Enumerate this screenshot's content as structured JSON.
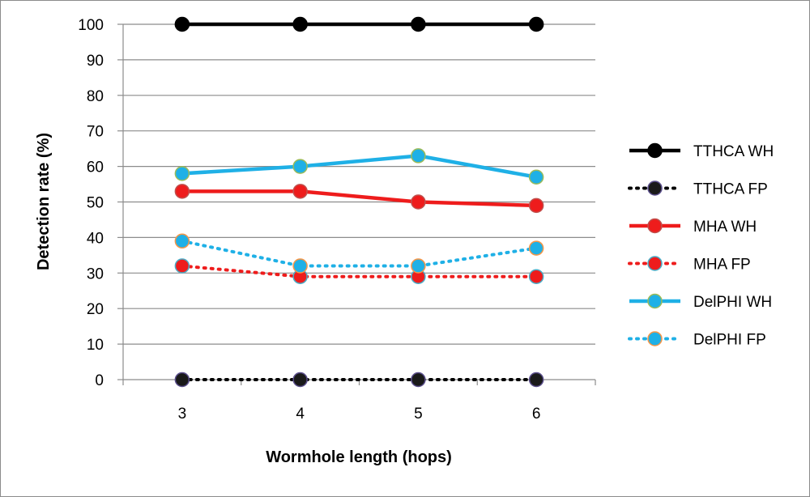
{
  "chart_data": {
    "type": "line",
    "title": "",
    "xlabel": "Wormhole length (hops)",
    "ylabel": "Detection rate (%)",
    "categories": [
      "3",
      "4",
      "5",
      "6"
    ],
    "ylim": [
      0,
      100
    ],
    "yticks": [
      0,
      10,
      20,
      30,
      40,
      50,
      60,
      70,
      80,
      90,
      100
    ],
    "grid": true,
    "legend_position": "right",
    "series": [
      {
        "name": "TTHCA WH",
        "values": [
          100,
          100,
          100,
          100
        ],
        "line_color": "#000000",
        "marker_fill": "#000000",
        "marker_edge": "#000000",
        "dashed": false
      },
      {
        "name": "TTHCA FP",
        "values": [
          0,
          0,
          0,
          0
        ],
        "line_color": "#000000",
        "marker_fill": "#1a1a1a",
        "marker_edge": "#5b4f8c",
        "dashed": true
      },
      {
        "name": "MHA WH",
        "values": [
          53,
          53,
          50,
          49
        ],
        "line_color": "#ee1c1c",
        "marker_fill": "#ee1c1c",
        "marker_edge": "#c0504d",
        "dashed": false
      },
      {
        "name": "MHA FP",
        "values": [
          32,
          29,
          29,
          29
        ],
        "line_color": "#ee1c1c",
        "marker_fill": "#ee1c1c",
        "marker_edge": "#4bacc6",
        "dashed": true
      },
      {
        "name": "DelPHI WH",
        "values": [
          58,
          60,
          63,
          57
        ],
        "line_color": "#1fb0e6",
        "marker_fill": "#1fb0e6",
        "marker_edge": "#9bbb59",
        "dashed": false
      },
      {
        "name": "DelPHI FP",
        "values": [
          39,
          32,
          32,
          37
        ],
        "line_color": "#1fb0e6",
        "marker_fill": "#1fb0e6",
        "marker_edge": "#f79646",
        "dashed": true
      }
    ]
  }
}
